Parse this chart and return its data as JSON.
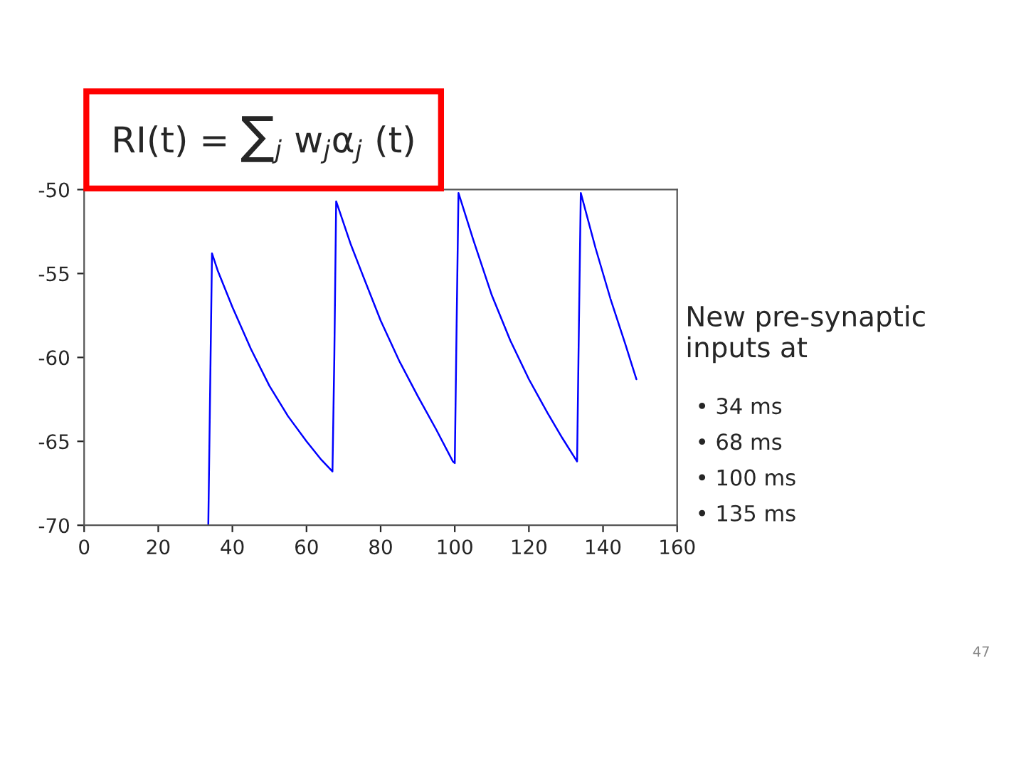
{
  "chart_data": {
    "type": "line",
    "x": [
      33.5,
      34.5,
      36,
      40,
      45,
      50,
      55,
      60,
      64,
      67,
      67.5,
      68,
      72,
      75,
      80,
      85,
      90,
      95,
      99.5,
      100,
      100.5,
      101,
      105,
      110,
      115,
      120,
      125,
      129,
      133,
      133.5,
      134,
      138,
      142,
      146,
      149
    ],
    "series": [
      {
        "color": "#0000ff",
        "values": [
          -70,
          -53.8,
          -54.8,
          -57,
          -59.5,
          -61.7,
          -63.5,
          -65,
          -66.1,
          -66.8,
          -60,
          -50.7,
          -53.3,
          -55,
          -57.8,
          -60.2,
          -62.3,
          -64.3,
          -66.2,
          -66.3,
          -58,
          -50.2,
          -53,
          -56.3,
          -59,
          -61.3,
          -63.3,
          -64.8,
          -66.2,
          -58,
          -50.2,
          -53.5,
          -56.5,
          -59.2,
          -61.3
        ]
      }
    ],
    "xlim": [
      0,
      160
    ],
    "xticks": [
      0,
      20,
      40,
      60,
      80,
      100,
      120,
      140,
      160
    ],
    "ylim": [
      -70,
      -50
    ],
    "yticks": [
      -70,
      -65,
      -60,
      -55,
      -50
    ],
    "grid": false,
    "annotations": [
      "RI(t) = ∑$_{j}$ w$_{j}$α$_{j}$ (t)",
      "New pre-synaptic inputs at",
      "• 34 ms",
      "• 68 ms",
      "• 100 ms",
      "• 135 ms",
      "47"
    ]
  }
}
